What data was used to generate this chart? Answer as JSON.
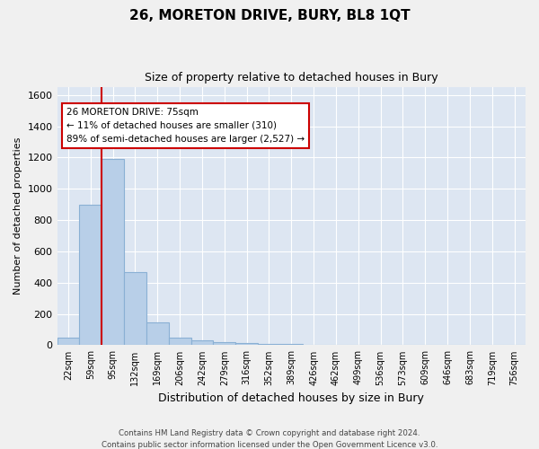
{
  "title": "26, MORETON DRIVE, BURY, BL8 1QT",
  "subtitle": "Size of property relative to detached houses in Bury",
  "xlabel": "Distribution of detached houses by size in Bury",
  "ylabel": "Number of detached properties",
  "categories": [
    "22sqm",
    "59sqm",
    "95sqm",
    "132sqm",
    "169sqm",
    "206sqm",
    "242sqm",
    "279sqm",
    "316sqm",
    "352sqm",
    "389sqm",
    "426sqm",
    "462sqm",
    "499sqm",
    "536sqm",
    "573sqm",
    "609sqm",
    "646sqm",
    "683sqm",
    "719sqm",
    "756sqm"
  ],
  "values": [
    50,
    900,
    1190,
    465,
    148,
    50,
    30,
    20,
    15,
    10,
    10,
    0,
    0,
    0,
    0,
    0,
    0,
    0,
    0,
    0,
    0
  ],
  "bar_color": "#b8cfe8",
  "bar_edge_color": "#8ab0d4",
  "property_line_label": "26 MORETON DRIVE: 75sqm",
  "annotation_line1": "← 11% of detached houses are smaller (310)",
  "annotation_line2": "89% of semi-detached houses are larger (2,527) →",
  "annotation_box_color": "#ffffff",
  "annotation_box_edge_color": "#cc0000",
  "vline_color": "#cc0000",
  "vline_x": 1.5,
  "ylim": [
    0,
    1650
  ],
  "yticks": [
    0,
    200,
    400,
    600,
    800,
    1000,
    1200,
    1400,
    1600
  ],
  "background_color": "#dde6f2",
  "grid_color": "#ffffff",
  "fig_bg_color": "#f0f0f0",
  "footer1": "Contains HM Land Registry data © Crown copyright and database right 2024.",
  "footer2": "Contains public sector information licensed under the Open Government Licence v3.0."
}
